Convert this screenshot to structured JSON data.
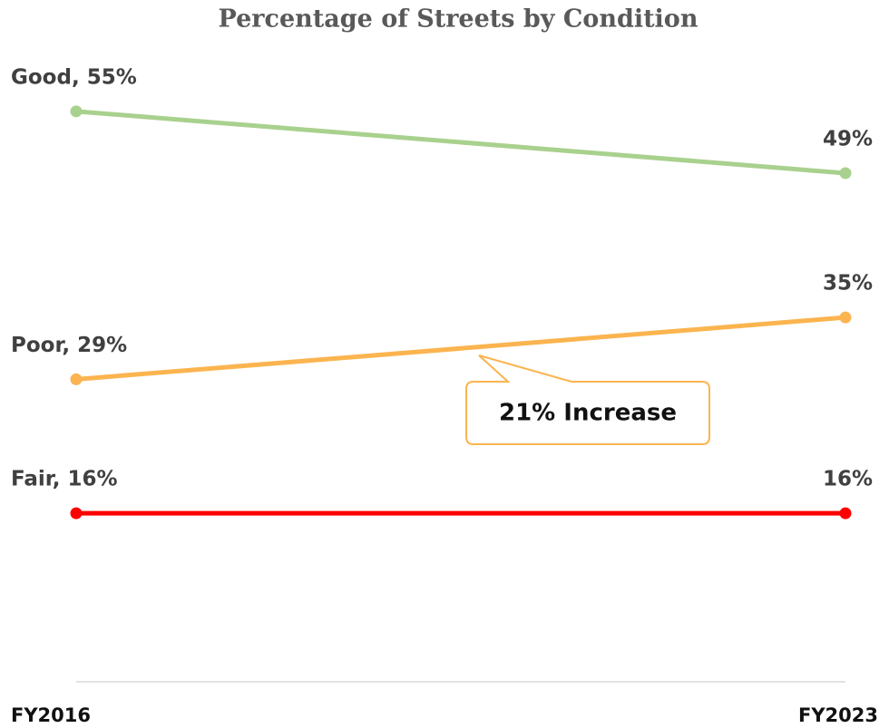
{
  "chart_data": {
    "type": "line",
    "title": "Percentage of Streets by Condition",
    "categories": [
      "FY2016",
      "FY2023"
    ],
    "series": [
      {
        "color": "#a9d18e",
        "values": [
          55,
          49
        ],
        "value_labels": [
          "Good, 55%",
          "49%"
        ]
      },
      {
        "color": "#fbb44f",
        "values": [
          29,
          35
        ],
        "value_labels": [
          "Poor, 29%",
          "35%"
        ]
      },
      {
        "color": "#ff0000",
        "values": [
          16,
          16
        ],
        "value_labels": [
          "Fair, 16%",
          "16%"
        ]
      }
    ],
    "annotation": "21% Increase",
    "ylim": [
      0,
      60
    ]
  }
}
